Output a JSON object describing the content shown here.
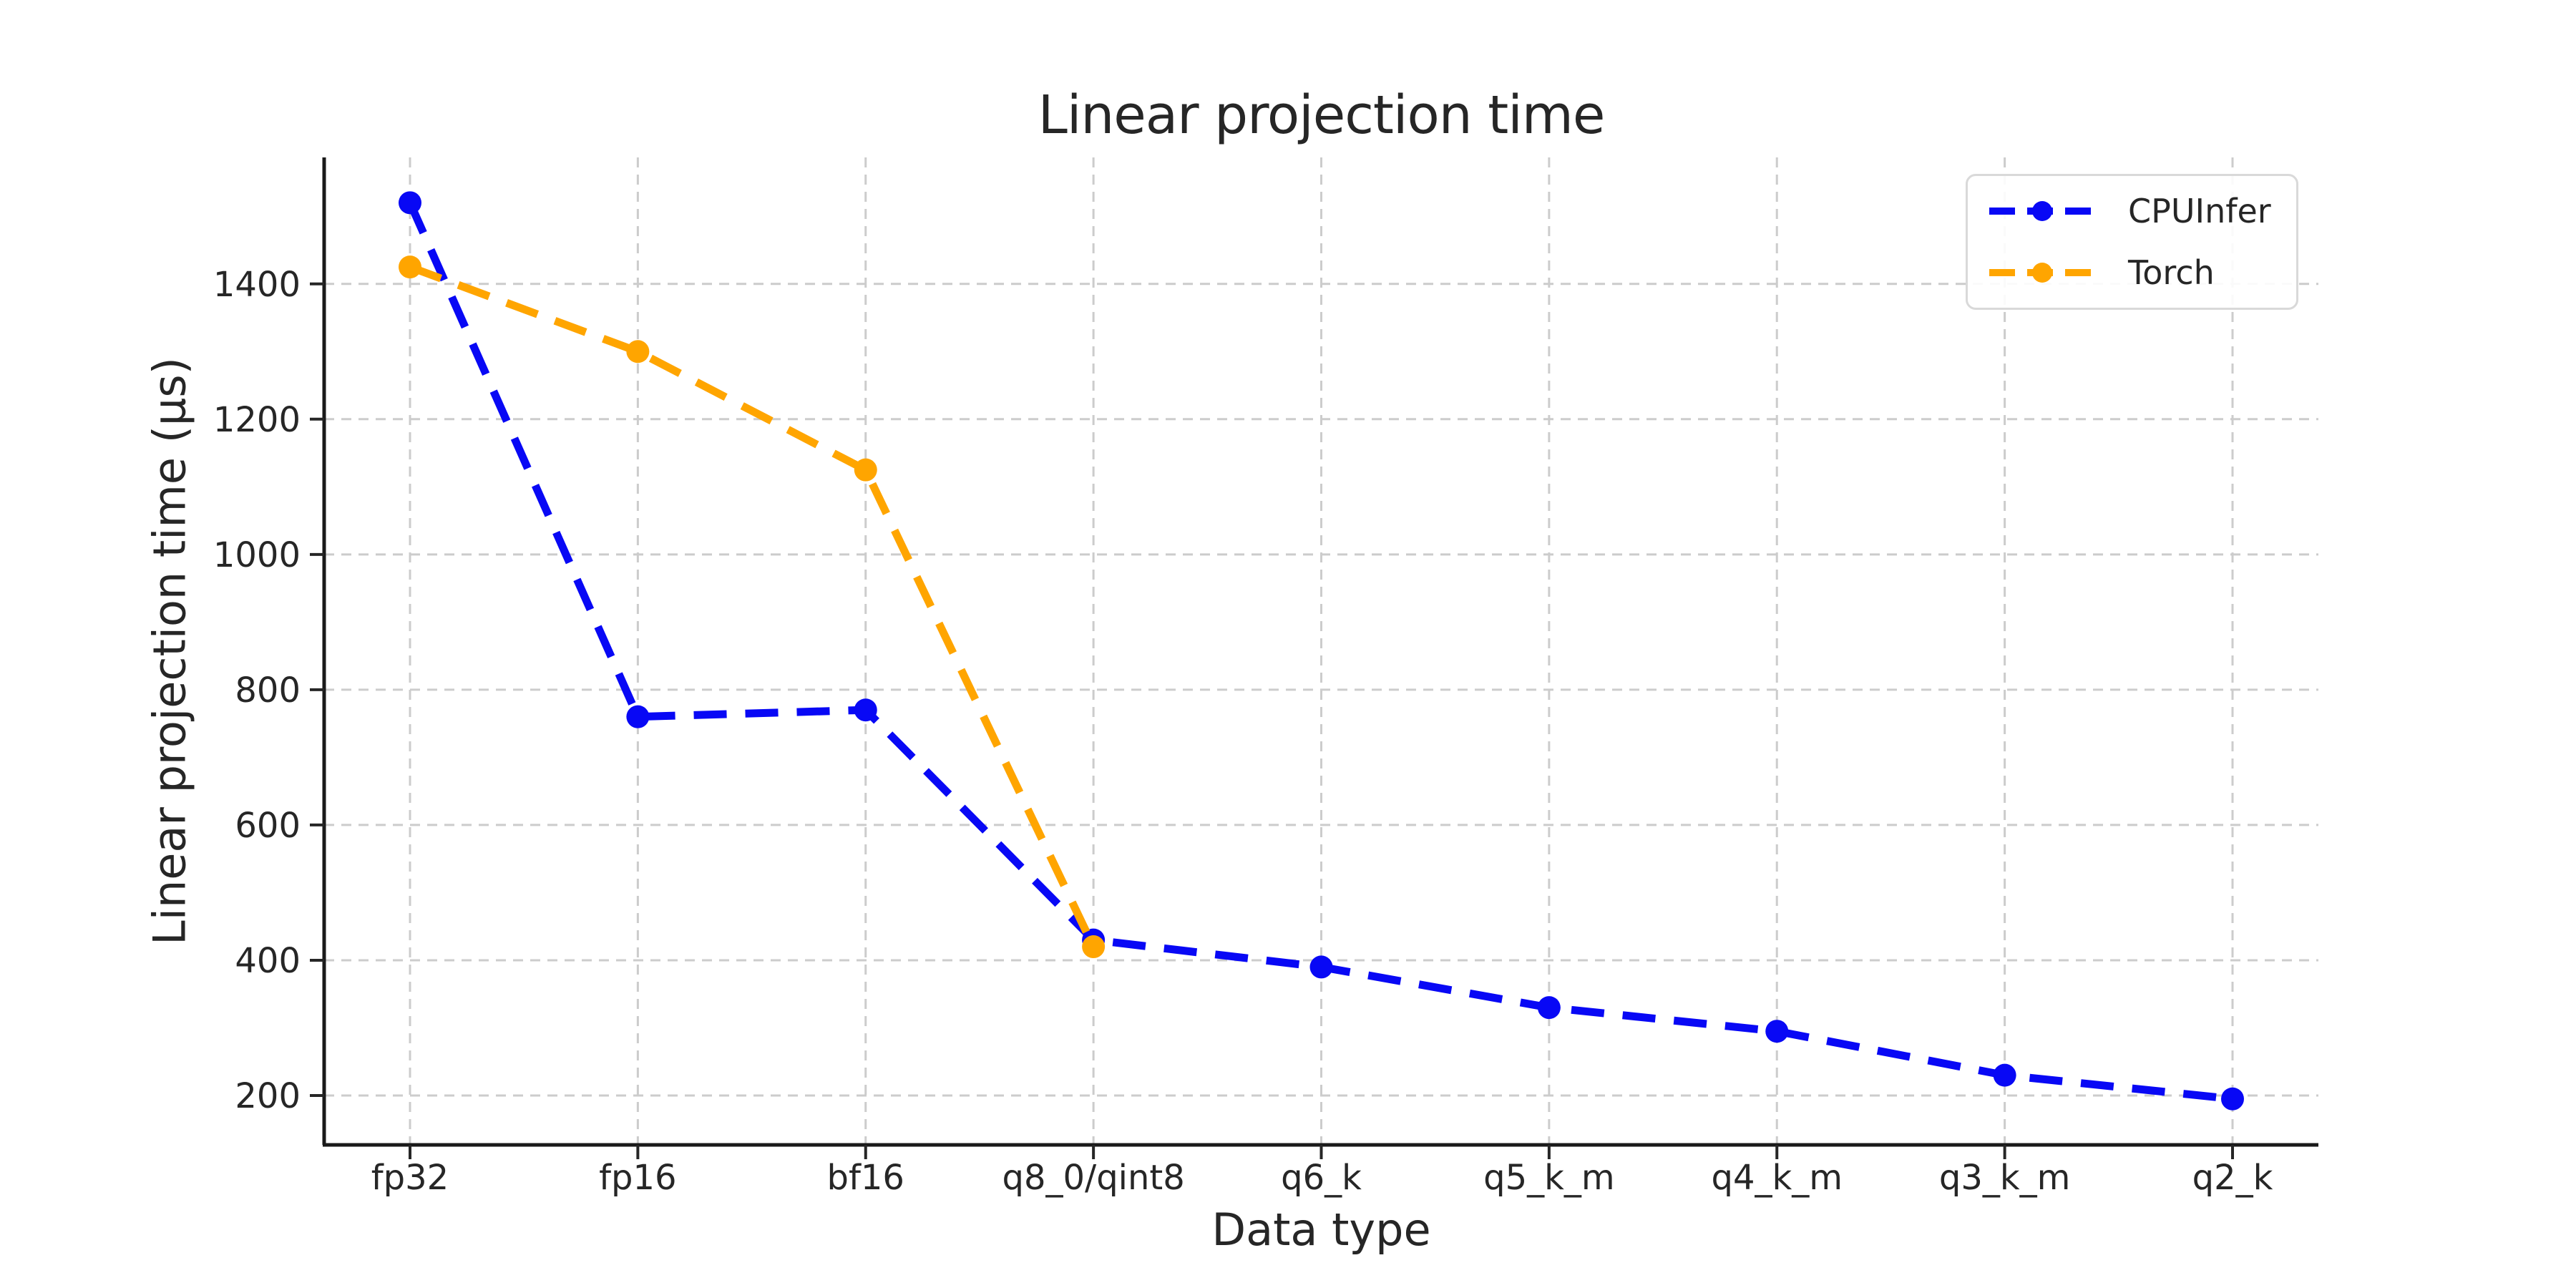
{
  "figure": {
    "title": "Linear projection time",
    "xlabel": "Data type",
    "ylabel": "Linear projection time (µs)"
  },
  "legend": {
    "position": "upper right",
    "items": [
      {
        "label": "CPUInfer",
        "color": "#0808f5"
      },
      {
        "label": "Torch",
        "color": "#ffa500"
      }
    ]
  },
  "chart_data": {
    "type": "line",
    "title": "Linear projection time",
    "xlabel": "Data type",
    "ylabel": "Linear projection time (µs)",
    "categories": [
      "fp32",
      "fp16",
      "bf16",
      "q8_0/qint8",
      "q6_k",
      "q5_k_m",
      "q4_k_m",
      "q3_k_m",
      "q2_k"
    ],
    "series": [
      {
        "name": "CPUInfer",
        "color": "#0808f5",
        "values": [
          1520,
          760,
          770,
          430,
          390,
          330,
          295,
          230,
          195
        ]
      },
      {
        "name": "Torch",
        "color": "#ffa500",
        "values": [
          1425,
          1300,
          1125,
          420,
          null,
          null,
          null,
          null,
          null
        ]
      }
    ],
    "yticks": [
      200,
      400,
      600,
      800,
      1000,
      1200,
      1400
    ],
    "ylim": [
      127,
      1587
    ],
    "grid": true,
    "grid_style": "dashed",
    "line_style": "dashed",
    "marker": "circle",
    "legend_position": "upper right"
  },
  "style": {
    "background": "#ffffff",
    "grid_color": "#cccccc",
    "spine_color": "#1a1a1a",
    "tick_color": "#262626",
    "text_color": "#262626",
    "legend_border": "#d9d9d9"
  }
}
